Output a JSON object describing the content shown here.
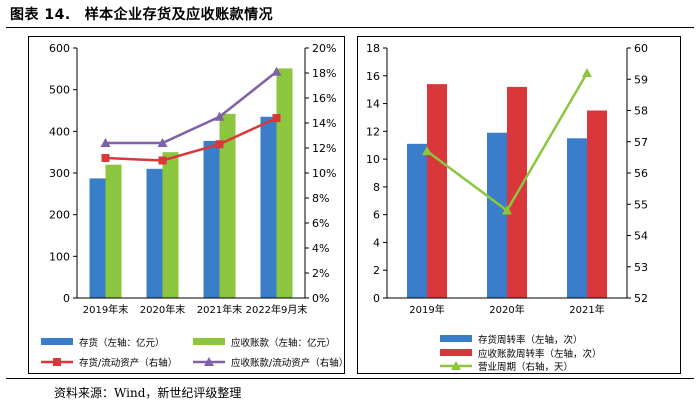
{
  "figure": {
    "label": "图表 14.",
    "title": "样本企业存货及应收账款情况",
    "source": "资料来源：Wind，新世纪评级整理"
  },
  "chart_data": [
    {
      "type": "bar",
      "categories": [
        "2019年末",
        "2020年末",
        "2021年末",
        "2022年9月末"
      ],
      "ylim": [
        0,
        600
      ],
      "y_ticks": [
        "0",
        "100",
        "200",
        "300",
        "400",
        "500",
        "600"
      ],
      "y2lim": [
        0,
        20
      ],
      "y2_ticks": [
        "0%",
        "2%",
        "4%",
        "6%",
        "8%",
        "10%",
        "12%",
        "14%",
        "16%",
        "18%",
        "20%"
      ],
      "series": [
        {
          "name": "存货（左轴：亿元）",
          "kind": "bar",
          "axis": "left",
          "color": "#3a7dc9",
          "values": [
            287,
            310,
            377,
            435
          ]
        },
        {
          "name": "应收账款（左轴：亿元）",
          "kind": "bar",
          "axis": "left",
          "color": "#8cc63f",
          "values": [
            320,
            350,
            442,
            551
          ]
        },
        {
          "name": "存货/流动资产（右轴）",
          "kind": "line",
          "axis": "right",
          "color": "#d9373a",
          "marker": "square",
          "values": [
            11.2,
            11.0,
            12.3,
            14.4
          ]
        },
        {
          "name": "应收账款/流动资产（右轴）",
          "kind": "line",
          "axis": "right",
          "color": "#8060a8",
          "marker": "triangle",
          "values": [
            12.4,
            12.4,
            14.5,
            18.1
          ]
        }
      ]
    },
    {
      "type": "bar",
      "categories": [
        "2019年",
        "2020年",
        "2021年"
      ],
      "ylim": [
        0,
        18
      ],
      "y_ticks": [
        "0",
        "2",
        "4",
        "6",
        "8",
        "10",
        "12",
        "14",
        "16",
        "18"
      ],
      "y2lim": [
        52,
        60
      ],
      "y2_ticks": [
        "52",
        "53",
        "54",
        "55",
        "56",
        "57",
        "58",
        "59",
        "60"
      ],
      "series": [
        {
          "name": "存货周转率（左轴，次）",
          "kind": "bar",
          "axis": "left",
          "color": "#3a7dc9",
          "values": [
            11.1,
            11.9,
            11.5
          ]
        },
        {
          "name": "应收账款周转率（左轴，次）",
          "kind": "bar",
          "axis": "left",
          "color": "#d9373a",
          "values": [
            15.4,
            15.2,
            13.5
          ]
        },
        {
          "name": "营业周期（右轴，天）",
          "kind": "line",
          "axis": "right",
          "color": "#8cc63f",
          "marker": "triangle",
          "values": [
            56.7,
            54.8,
            59.2
          ]
        }
      ]
    }
  ]
}
